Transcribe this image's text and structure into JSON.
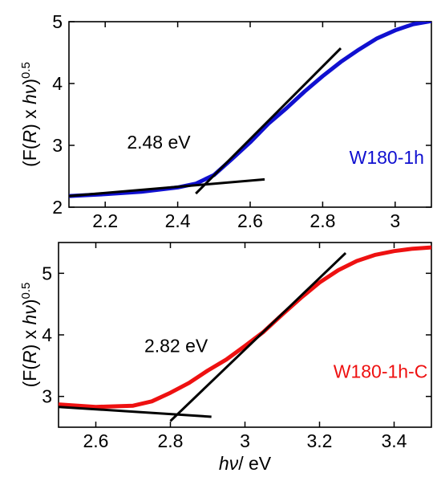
{
  "chart_data": [
    {
      "type": "line",
      "panel": "top",
      "xlim": [
        2.1,
        3.1
      ],
      "ylim": [
        2,
        5
      ],
      "x_ticks": [
        2.2,
        2.4,
        2.6,
        2.8,
        3
      ],
      "x_tick_labels": [
        "2.2",
        "2.4",
        "2.6",
        "2.8",
        "3"
      ],
      "y_ticks": [
        2,
        3,
        4,
        5
      ],
      "y_tick_labels": [
        "2",
        "3",
        "4",
        "5"
      ],
      "ylabel_parts": [
        "(F(",
        "R",
        ") x ",
        "h",
        "ν",
        ")",
        "0.5"
      ],
      "xlabel": "",
      "series": [
        {
          "name": "W180-1h",
          "color": "#1010d0",
          "points": [
            [
              2.1,
              2.18
            ],
            [
              2.2,
              2.21
            ],
            [
              2.3,
              2.25
            ],
            [
              2.4,
              2.32
            ],
            [
              2.45,
              2.38
            ],
            [
              2.5,
              2.52
            ],
            [
              2.55,
              2.78
            ],
            [
              2.6,
              3.05
            ],
            [
              2.65,
              3.35
            ],
            [
              2.7,
              3.6
            ],
            [
              2.75,
              3.87
            ],
            [
              2.8,
              4.12
            ],
            [
              2.85,
              4.35
            ],
            [
              2.9,
              4.55
            ],
            [
              2.95,
              4.73
            ],
            [
              3.0,
              4.86
            ],
            [
              3.05,
              4.96
            ],
            [
              3.1,
              5.01
            ]
          ]
        }
      ],
      "fit_lines": [
        {
          "x": [
            2.45,
            2.85
          ],
          "y": [
            2.22,
            4.57
          ]
        },
        {
          "x": [
            2.1,
            2.64
          ],
          "y": [
            2.18,
            2.45
          ]
        }
      ],
      "annotations": [
        {
          "text": "2.48 eV",
          "color": "#000000",
          "x": 2.26,
          "y": 2.95
        },
        {
          "text": "W180-1h",
          "color": "#1010d0",
          "x": 3.08,
          "y": 2.7
        }
      ]
    },
    {
      "type": "line",
      "panel": "bottom",
      "xlim": [
        2.5,
        3.5
      ],
      "ylim": [
        2.5,
        5.5
      ],
      "x_ticks": [
        2.6,
        2.8,
        3,
        3.2,
        3.4
      ],
      "x_tick_labels": [
        "2.6",
        "2.8",
        "3",
        "3.2",
        "3.4"
      ],
      "y_ticks": [
        3,
        4,
        5
      ],
      "y_tick_labels": [
        "3",
        "4",
        "5"
      ],
      "ylabel_parts": [
        "(F(",
        "R",
        ") x ",
        "h",
        "ν",
        ")",
        "0.5"
      ],
      "xlabel_parts": [
        "h",
        "ν",
        "/ eV"
      ],
      "series": [
        {
          "name": "W180-1h-C",
          "color": "#ee1111",
          "points": [
            [
              2.5,
              2.87
            ],
            [
              2.6,
              2.83
            ],
            [
              2.7,
              2.85
            ],
            [
              2.75,
              2.92
            ],
            [
              2.8,
              3.06
            ],
            [
              2.85,
              3.22
            ],
            [
              2.9,
              3.42
            ],
            [
              2.95,
              3.6
            ],
            [
              3.0,
              3.82
            ],
            [
              3.05,
              4.05
            ],
            [
              3.1,
              4.33
            ],
            [
              3.15,
              4.6
            ],
            [
              3.2,
              4.85
            ],
            [
              3.25,
              5.05
            ],
            [
              3.3,
              5.2
            ],
            [
              3.35,
              5.3
            ],
            [
              3.4,
              5.36
            ],
            [
              3.45,
              5.4
            ],
            [
              3.5,
              5.42
            ]
          ]
        }
      ],
      "fit_lines": [
        {
          "x": [
            2.8,
            3.27
          ],
          "y": [
            2.6,
            5.33
          ]
        },
        {
          "x": [
            2.5,
            2.91
          ],
          "y": [
            2.83,
            2.67
          ]
        }
      ],
      "annotations": [
        {
          "text": "2.82 eV",
          "color": "#000000",
          "x": 2.73,
          "y": 3.72
        },
        {
          "text": "W180-1h-C",
          "color": "#ee1111",
          "x": 3.49,
          "y": 3.3
        }
      ]
    }
  ]
}
